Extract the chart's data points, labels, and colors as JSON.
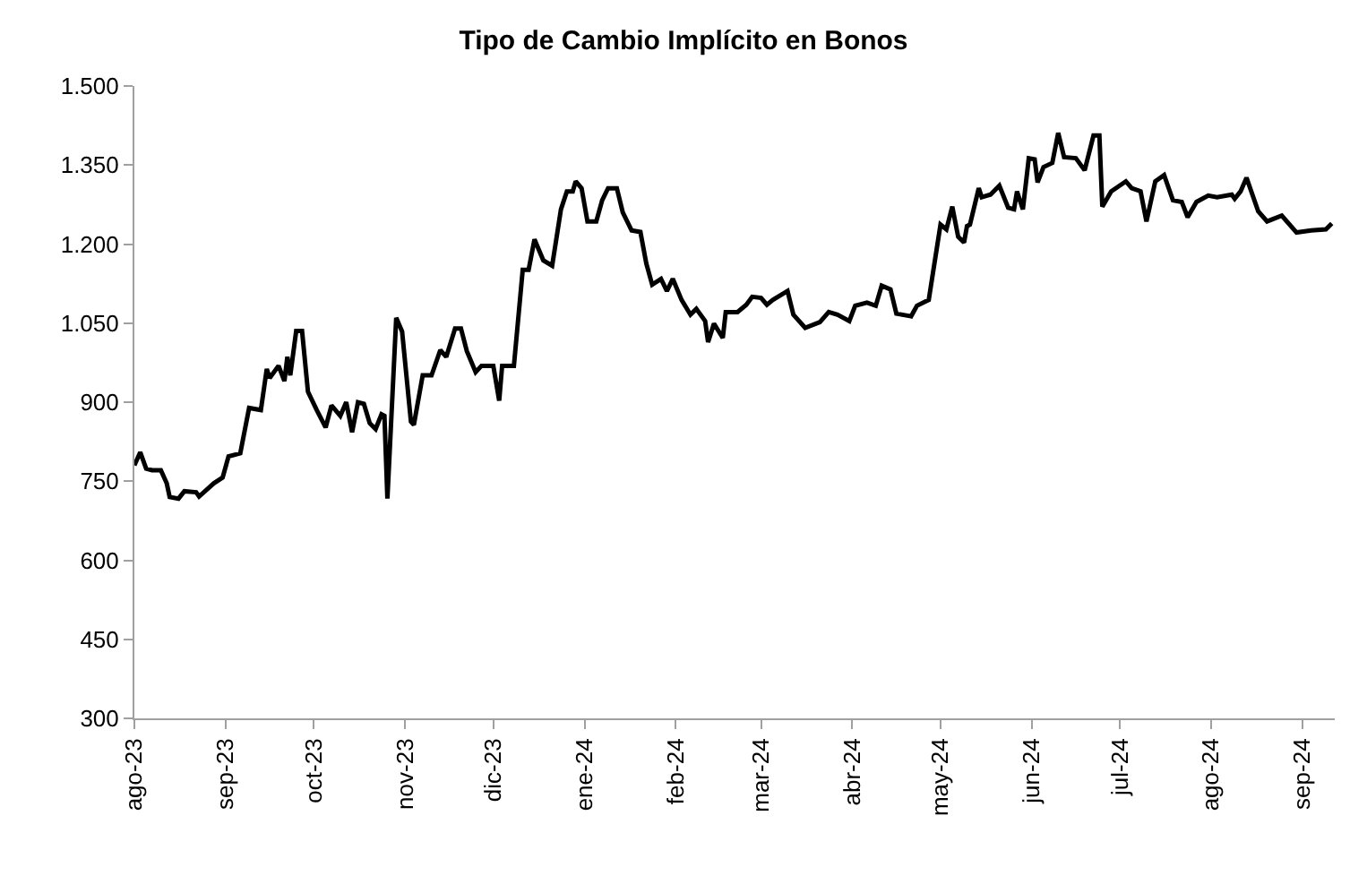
{
  "chart_data": {
    "type": "line",
    "title": "Tipo de Cambio Implícito en Bonos",
    "x": [
      "2023-08-01",
      "2023-08-03",
      "2023-08-05",
      "2023-08-07",
      "2023-08-10",
      "2023-08-12",
      "2023-08-13",
      "2023-08-16",
      "2023-08-18",
      "2023-08-22",
      "2023-08-23",
      "2023-08-28",
      "2023-08-31",
      "2023-09-02",
      "2023-09-06",
      "2023-09-09",
      "2023-09-13",
      "2023-09-15",
      "2023-09-16",
      "2023-09-19",
      "2023-09-21",
      "2023-09-22",
      "2023-09-23",
      "2023-09-25",
      "2023-09-27",
      "2023-09-29",
      "2023-10-02",
      "2023-10-05",
      "2023-10-07",
      "2023-10-10",
      "2023-10-12",
      "2023-10-14",
      "2023-10-16",
      "2023-10-18",
      "2023-10-20",
      "2023-10-22",
      "2023-10-24",
      "2023-10-25",
      "2023-10-26",
      "2023-10-29",
      "2023-10-31",
      "2023-11-03",
      "2023-11-04",
      "2023-11-07",
      "2023-11-10",
      "2023-11-13",
      "2023-11-15",
      "2023-11-18",
      "2023-11-20",
      "2023-11-22",
      "2023-11-25",
      "2023-11-27",
      "2023-12-01",
      "2023-12-03",
      "2023-12-04",
      "2023-12-08",
      "2023-12-11",
      "2023-12-13",
      "2023-12-15",
      "2023-12-18",
      "2023-12-21",
      "2023-12-24",
      "2023-12-26",
      "2023-12-28",
      "2023-12-29",
      "2023-12-31",
      "2024-01-02",
      "2024-01-05",
      "2024-01-07",
      "2024-01-09",
      "2024-01-12",
      "2024-01-14",
      "2024-01-17",
      "2024-01-20",
      "2024-01-22",
      "2024-01-24",
      "2024-01-27",
      "2024-01-29",
      "2024-01-31",
      "2024-02-03",
      "2024-02-06",
      "2024-02-08",
      "2024-02-11",
      "2024-02-12",
      "2024-02-14",
      "2024-02-17",
      "2024-02-18",
      "2024-02-22",
      "2024-02-25",
      "2024-02-27",
      "2024-03-01",
      "2024-03-03",
      "2024-03-05",
      "2024-03-10",
      "2024-03-12",
      "2024-03-16",
      "2024-03-21",
      "2024-03-24",
      "2024-03-27",
      "2024-03-31",
      "2024-04-02",
      "2024-04-06",
      "2024-04-09",
      "2024-04-11",
      "2024-04-14",
      "2024-04-16",
      "2024-04-21",
      "2024-04-23",
      "2024-04-27",
      "2024-05-01",
      "2024-05-03",
      "2024-05-05",
      "2024-05-07",
      "2024-05-09",
      "2024-05-10",
      "2024-05-11",
      "2024-05-14",
      "2024-05-15",
      "2024-05-18",
      "2024-05-21",
      "2024-05-24",
      "2024-05-26",
      "2024-05-27",
      "2024-05-29",
      "2024-05-31",
      "2024-06-02",
      "2024-06-03",
      "2024-06-05",
      "2024-06-08",
      "2024-06-10",
      "2024-06-12",
      "2024-06-16",
      "2024-06-19",
      "2024-06-22",
      "2024-06-24",
      "2024-06-25",
      "2024-06-28",
      "2024-07-03",
      "2024-07-05",
      "2024-07-08",
      "2024-07-10",
      "2024-07-13",
      "2024-07-16",
      "2024-07-19",
      "2024-07-22",
      "2024-07-24",
      "2024-07-27",
      "2024-07-31",
      "2024-08-03",
      "2024-08-08",
      "2024-08-09",
      "2024-08-11",
      "2024-08-13",
      "2024-08-17",
      "2024-08-20",
      "2024-08-25",
      "2024-08-30",
      "2024-09-04",
      "2024-09-09",
      "2024-09-11"
    ],
    "series": [
      {
        "color": "#000000",
        "values": [
          780,
          805,
          774,
          771,
          771,
          746,
          720,
          717,
          731,
          729,
          721,
          746,
          757,
          797,
          803,
          889,
          885,
          963,
          946,
          969,
          940,
          986,
          951,
          1035,
          1035,
          920,
          885,
          852,
          894,
          874,
          900,
          843,
          900,
          897,
          860,
          849,
          877,
          874,
          717,
          1060,
          1034,
          863,
          857,
          951,
          951,
          999,
          986,
          1040,
          1040,
          997,
          957,
          969,
          969,
          903,
          969,
          969,
          1151,
          1151,
          1209,
          1169,
          1159,
          1266,
          1300,
          1300,
          1319,
          1306,
          1243,
          1243,
          1283,
          1306,
          1306,
          1260,
          1226,
          1223,
          1163,
          1123,
          1134,
          1111,
          1134,
          1094,
          1066,
          1077,
          1054,
          1014,
          1049,
          1022,
          1071,
          1071,
          1085,
          1100,
          1098,
          1085,
          1094,
          1111,
          1066,
          1041,
          1052,
          1071,
          1066,
          1054,
          1083,
          1089,
          1083,
          1121,
          1114,
          1068,
          1063,
          1083,
          1094,
          1237,
          1228,
          1271,
          1214,
          1203,
          1234,
          1237,
          1306,
          1289,
          1294,
          1311,
          1269,
          1266,
          1300,
          1266,
          1363,
          1361,
          1317,
          1346,
          1354,
          1411,
          1365,
          1363,
          1340,
          1406,
          1406,
          1271,
          1300,
          1319,
          1306,
          1300,
          1243,
          1319,
          1331,
          1283,
          1280,
          1251,
          1280,
          1292,
          1289,
          1294,
          1286,
          1300,
          1326,
          1262,
          1243,
          1254,
          1222,
          1226,
          1228,
          1239
        ]
      }
    ],
    "xlim": [
      "2023-08-01",
      "2024-09-12"
    ],
    "xticks": [
      {
        "value": "2023-08-01",
        "label": "ago-23"
      },
      {
        "value": "2023-09-01",
        "label": "sep-23"
      },
      {
        "value": "2023-10-01",
        "label": "oct-23"
      },
      {
        "value": "2023-11-01",
        "label": "nov-23"
      },
      {
        "value": "2023-12-01",
        "label": "dic-23"
      },
      {
        "value": "2024-01-01",
        "label": "ene-24"
      },
      {
        "value": "2024-02-01",
        "label": "feb-24"
      },
      {
        "value": "2024-03-01",
        "label": "mar-24"
      },
      {
        "value": "2024-04-01",
        "label": "abr-24"
      },
      {
        "value": "2024-05-01",
        "label": "may-24"
      },
      {
        "value": "2024-06-01",
        "label": "jun-24"
      },
      {
        "value": "2024-07-01",
        "label": "jul-24"
      },
      {
        "value": "2024-08-01",
        "label": "ago-24"
      },
      {
        "value": "2024-09-01",
        "label": "sep-24"
      }
    ],
    "ylim": [
      300,
      1500
    ],
    "yticks": [
      {
        "value": 300,
        "label": "300"
      },
      {
        "value": 450,
        "label": "450"
      },
      {
        "value": 600,
        "label": "600"
      },
      {
        "value": 750,
        "label": "750"
      },
      {
        "value": 900,
        "label": "900"
      },
      {
        "value": 1050,
        "label": "1.050"
      },
      {
        "value": 1200,
        "label": "1.200"
      },
      {
        "value": 1350,
        "label": "1.350"
      },
      {
        "value": 1500,
        "label": "1.500"
      }
    ],
    "marker": "none",
    "line_style": "solid"
  }
}
